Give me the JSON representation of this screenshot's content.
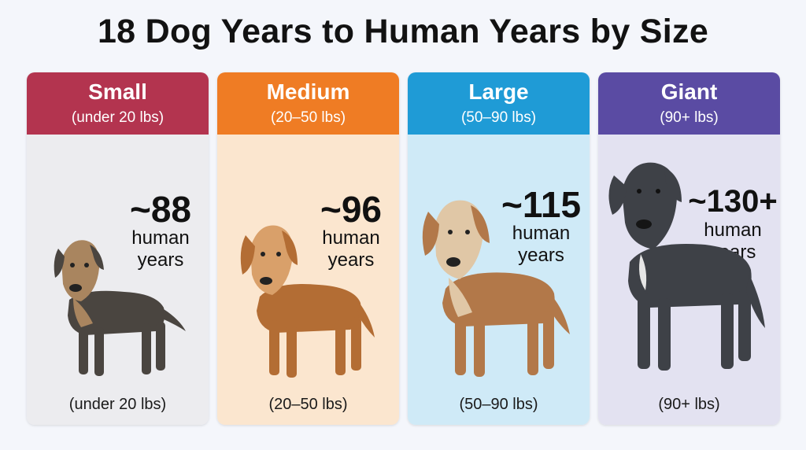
{
  "title": "18 Dog Years to Human Years by Size",
  "cards": [
    {
      "name": "Small",
      "range": "(under 20 lbs)",
      "years": "~88",
      "unit_line1": "human",
      "unit_line2": "years",
      "bottom_range": "(under 20 lbs)",
      "header_color": "#b3344f",
      "body_color": "#ececef",
      "dog_color": "#4a4540",
      "dog_accent": "#a9855f"
    },
    {
      "name": "Medium",
      "range": "(20–50 lbs)",
      "years": "~96",
      "unit_line1": "human",
      "unit_line2": "years",
      "bottom_range": "(20–50 lbs)",
      "header_color": "#ef7c24",
      "body_color": "#fbe6cf",
      "dog_color": "#b36d34",
      "dog_accent": "#d9a06a"
    },
    {
      "name": "Large",
      "range": "(50–90 lbs)",
      "years": "~115",
      "unit_line1": "human",
      "unit_line2": "years",
      "bottom_range": "(50–90 lbs)",
      "header_color": "#1f9bd6",
      "body_color": "#cfeaf7",
      "dog_color": "#b27849",
      "dog_accent": "#e0c7a6"
    },
    {
      "name": "Giant",
      "range": "(90+ lbs)",
      "years": "~130+",
      "unit_line1": "human",
      "unit_line2": "years",
      "bottom_range": "(90+ lbs)",
      "header_color": "#5a4ba3",
      "body_color": "#e3e2f1",
      "dog_color": "#3e4147",
      "dog_accent": "#6c7078"
    }
  ]
}
